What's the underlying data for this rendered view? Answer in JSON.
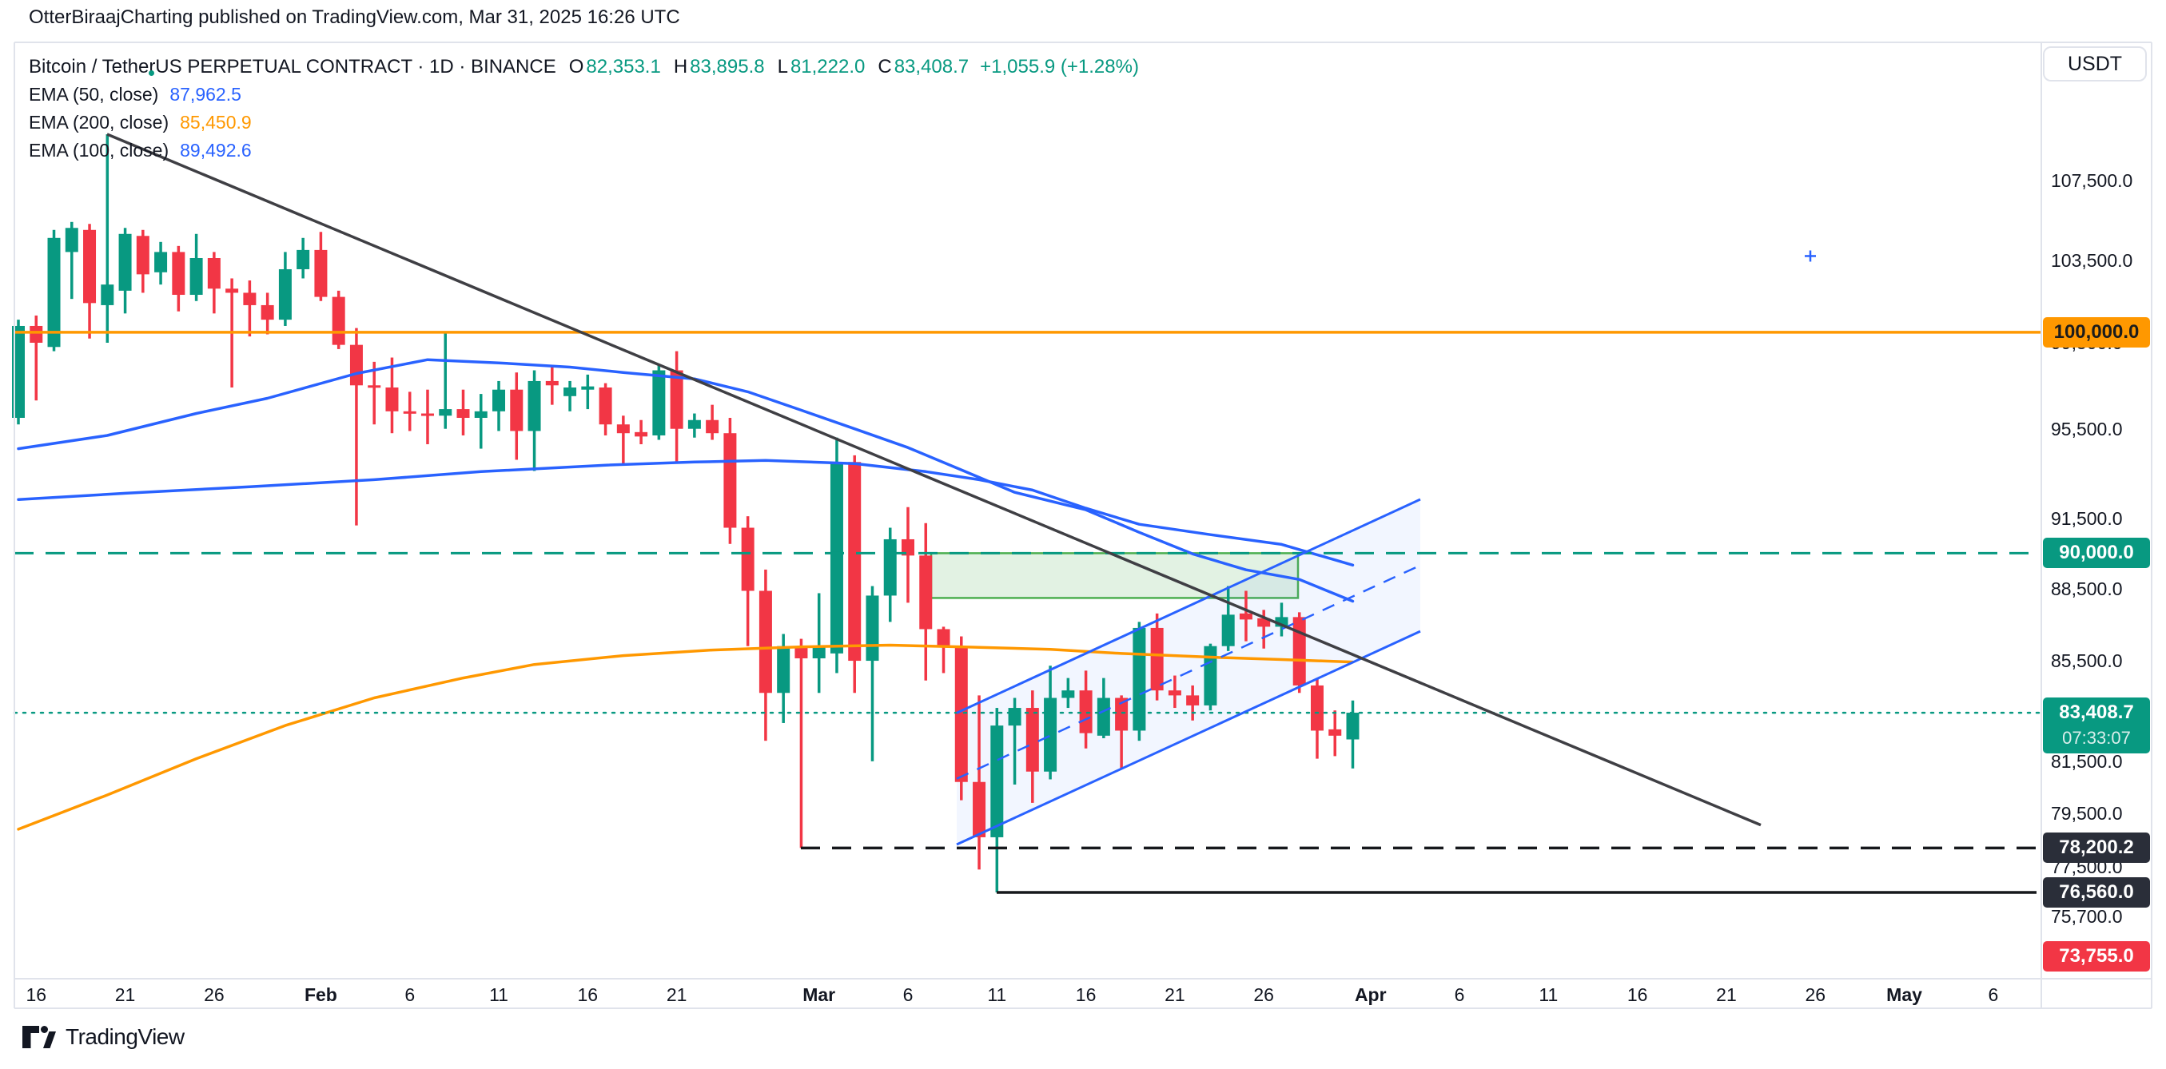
{
  "attribution": "OtterBiraajCharting published on TradingView.com, Mar 31, 2025 16:26 UTC",
  "header": {
    "title": "Bitcoin / TetherUS PERPETUAL CONTRACT · 1D · BINANCE",
    "ohlc": [
      {
        "k": "O",
        "v": "82,353.1"
      },
      {
        "k": "H",
        "v": "83,895.8"
      },
      {
        "k": "L",
        "v": "81,222.0"
      },
      {
        "k": "C",
        "v": "83,408.7"
      }
    ],
    "change": "+1,055.9 (+1.28%)",
    "up_color": "#089981"
  },
  "indicators": [
    {
      "label": "EMA (50, close)",
      "value": "87,962.5",
      "color": "#2962ff"
    },
    {
      "label": "EMA (200, close)",
      "value": "85,450.9",
      "color": "#ff9800"
    },
    {
      "label": "EMA (100, close)",
      "value": "89,492.6",
      "color": "#2962ff"
    }
  ],
  "axis": {
    "currency": "USDT",
    "price_ticks": [
      {
        "v": 107500,
        "t": "107,500.0"
      },
      {
        "v": 103500,
        "t": "103,500.0"
      },
      {
        "v": 99500,
        "t": "99,500.0"
      },
      {
        "v": 95500,
        "t": "95,500.0"
      },
      {
        "v": 91500,
        "t": "91,500.0"
      },
      {
        "v": 88500,
        "t": "88,500.0"
      },
      {
        "v": 85500,
        "t": "85,500.0"
      },
      {
        "v": 81500,
        "t": "81,500.0"
      },
      {
        "v": 79500,
        "t": "79,500.0"
      },
      {
        "v": 77500,
        "t": "77,500.0"
      },
      {
        "v": 75700,
        "t": "75,700.0"
      }
    ],
    "time_ticks": [
      {
        "i": 1,
        "t": "16"
      },
      {
        "i": 6,
        "t": "21"
      },
      {
        "i": 11,
        "t": "26"
      },
      {
        "i": 17,
        "t": "Feb",
        "bold": true
      },
      {
        "i": 22,
        "t": "6"
      },
      {
        "i": 27,
        "t": "11"
      },
      {
        "i": 32,
        "t": "16"
      },
      {
        "i": 37,
        "t": "21"
      },
      {
        "i": 45,
        "t": "Mar",
        "bold": true
      },
      {
        "i": 50,
        "t": "6"
      },
      {
        "i": 55,
        "t": "11"
      },
      {
        "i": 60,
        "t": "16"
      },
      {
        "i": 65,
        "t": "21"
      },
      {
        "i": 70,
        "t": "26"
      },
      {
        "i": 76,
        "t": "Apr",
        "bold": true
      },
      {
        "i": 81,
        "t": "6"
      },
      {
        "i": 86,
        "t": "11"
      },
      {
        "i": 91,
        "t": "16"
      },
      {
        "i": 96,
        "t": "21"
      },
      {
        "i": 101,
        "t": "26"
      },
      {
        "i": 106,
        "t": "May",
        "bold": true
      },
      {
        "i": 111,
        "t": "6"
      }
    ]
  },
  "footer": {
    "logo_text": "TradingView"
  },
  "chart_data": {
    "type": "candlestick",
    "symbol": "BTCUSDT PERPETUAL",
    "timeframe": "1D",
    "first_bar_date": "2025-01-15",
    "last_bar_date": "2025-03-31",
    "up_color": "#089981",
    "down_color": "#f23645",
    "candles": [
      [
        96000,
        100600,
        95700,
        100300
      ],
      [
        100300,
        100800,
        96800,
        99500
      ],
      [
        99300,
        105000,
        99100,
        104600
      ],
      [
        103900,
        105400,
        101600,
        105100
      ],
      [
        105000,
        105300,
        99700,
        101400
      ],
      [
        101300,
        109900,
        99500,
        102300
      ],
      [
        102000,
        105100,
        100900,
        104800
      ],
      [
        104700,
        105000,
        101900,
        102800
      ],
      [
        102900,
        104400,
        102300,
        103900
      ],
      [
        103900,
        104200,
        101000,
        101800
      ],
      [
        101800,
        104800,
        101500,
        103600
      ],
      [
        103600,
        103900,
        100900,
        102100
      ],
      [
        102100,
        102600,
        97400,
        101900
      ],
      [
        101900,
        102500,
        99800,
        101300
      ],
      [
        101300,
        101900,
        99900,
        100600
      ],
      [
        100600,
        103900,
        100300,
        103050
      ],
      [
        103050,
        104600,
        102600,
        104000
      ],
      [
        104000,
        104900,
        101500,
        101700
      ],
      [
        101700,
        102000,
        99200,
        99400
      ],
      [
        99400,
        100200,
        91200,
        97500
      ],
      [
        97500,
        98600,
        95700,
        97400
      ],
      [
        97400,
        98800,
        95300,
        96300
      ],
      [
        96300,
        97200,
        95400,
        96200
      ],
      [
        96200,
        97300,
        94800,
        96100
      ],
      [
        96100,
        100000,
        95500,
        96400
      ],
      [
        96400,
        97300,
        95200,
        96000
      ],
      [
        96000,
        97100,
        94600,
        96300
      ],
      [
        96300,
        97700,
        95400,
        97300
      ],
      [
        97300,
        98100,
        94100,
        95400
      ],
      [
        95400,
        98200,
        93600,
        97700
      ],
      [
        97700,
        98400,
        96600,
        97500
      ],
      [
        97000,
        97700,
        96300,
        97400
      ],
      [
        97300,
        98000,
        96400,
        97450
      ],
      [
        97400,
        97600,
        95200,
        95700
      ],
      [
        95700,
        96100,
        93900,
        95300
      ],
      [
        95350,
        95900,
        94800,
        95150
      ],
      [
        95200,
        98500,
        95000,
        98200
      ],
      [
        98200,
        99100,
        94000,
        95500
      ],
      [
        95500,
        96200,
        95100,
        95900
      ],
      [
        95900,
        96600,
        95000,
        95300
      ],
      [
        95300,
        96000,
        90400,
        91100
      ],
      [
        91100,
        91600,
        86100,
        88400
      ],
      [
        88400,
        89300,
        82300,
        84200
      ],
      [
        84200,
        86600,
        83000,
        86100
      ],
      [
        86100,
        86400,
        78200,
        85600
      ],
      [
        85600,
        88300,
        84200,
        86100
      ],
      [
        85800,
        95100,
        85000,
        94000
      ],
      [
        94000,
        94300,
        84200,
        85500
      ],
      [
        85500,
        88600,
        81500,
        88200
      ],
      [
        88200,
        91100,
        87100,
        90600
      ],
      [
        90600,
        92000,
        87900,
        89900
      ],
      [
        89900,
        91300,
        84700,
        86800
      ],
      [
        86800,
        86900,
        85000,
        86100
      ],
      [
        86100,
        86500,
        80000,
        80700
      ],
      [
        80700,
        84100,
        77400,
        78600
      ],
      [
        78600,
        83600,
        76560,
        82900
      ],
      [
        82900,
        84000,
        80600,
        83600
      ],
      [
        83600,
        84300,
        79900,
        81100
      ],
      [
        81100,
        85300,
        80800,
        84000
      ],
      [
        84000,
        84800,
        83600,
        84300
      ],
      [
        84300,
        85100,
        82000,
        82600
      ],
      [
        82500,
        84800,
        82400,
        84000
      ],
      [
        84000,
        84100,
        81200,
        82700
      ],
      [
        82700,
        87100,
        82300,
        86850
      ],
      [
        86850,
        87450,
        83900,
        84300
      ],
      [
        84300,
        84900,
        83600,
        84100
      ],
      [
        84100,
        84500,
        83100,
        83700
      ],
      [
        83700,
        86200,
        83500,
        86100
      ],
      [
        86100,
        88600,
        85900,
        87400
      ],
      [
        87450,
        88400,
        86300,
        87200
      ],
      [
        87250,
        87600,
        86000,
        86900
      ],
      [
        86900,
        87900,
        86500,
        87300
      ],
      [
        87300,
        87500,
        84200,
        84500
      ],
      [
        84500,
        84800,
        81600,
        82700
      ],
      [
        82750,
        83500,
        81700,
        82500
      ],
      [
        82353,
        83896,
        81222,
        83409
      ]
    ],
    "series": [
      {
        "name": "EMA 50",
        "color": "#2962ff",
        "points": [
          [
            0,
            94600
          ],
          [
            5,
            95200
          ],
          [
            10,
            96200
          ],
          [
            14,
            96900
          ],
          [
            19,
            98050
          ],
          [
            23,
            98700
          ],
          [
            27,
            98550
          ],
          [
            31,
            98350
          ],
          [
            34,
            98100
          ],
          [
            38,
            97800
          ],
          [
            41,
            97200
          ],
          [
            44,
            96350
          ],
          [
            47,
            95500
          ],
          [
            50,
            94650
          ],
          [
            53,
            93650
          ],
          [
            56,
            92650
          ],
          [
            60,
            91880
          ],
          [
            63,
            90900
          ],
          [
            66,
            89970
          ],
          [
            69,
            89290
          ],
          [
            72,
            88880
          ],
          [
            75,
            87962
          ]
        ]
      },
      {
        "name": "EMA 100",
        "color": "#2962ff",
        "points": [
          [
            0,
            92330
          ],
          [
            6,
            92610
          ],
          [
            13,
            92900
          ],
          [
            20,
            93210
          ],
          [
            26,
            93570
          ],
          [
            33,
            93860
          ],
          [
            38,
            94000
          ],
          [
            42,
            94070
          ],
          [
            47,
            93930
          ],
          [
            51,
            93570
          ],
          [
            54,
            93210
          ],
          [
            57,
            92750
          ],
          [
            60,
            91950
          ],
          [
            63,
            91250
          ],
          [
            67,
            90800
          ],
          [
            71,
            90380
          ],
          [
            75,
            89492
          ]
        ]
      },
      {
        "name": "EMA 200",
        "color": "#ff9800",
        "points": [
          [
            0,
            78900
          ],
          [
            5,
            80200
          ],
          [
            10,
            81600
          ],
          [
            15,
            82900
          ],
          [
            20,
            84000
          ],
          [
            25,
            84800
          ],
          [
            29,
            85350
          ],
          [
            34,
            85710
          ],
          [
            39,
            85940
          ],
          [
            44,
            86070
          ],
          [
            49,
            86140
          ],
          [
            53,
            86070
          ],
          [
            58,
            85970
          ],
          [
            62,
            85800
          ],
          [
            67,
            85650
          ],
          [
            71,
            85550
          ],
          [
            75,
            85450
          ]
        ]
      }
    ],
    "levels": [
      {
        "price": 100000,
        "label": "100,000.0",
        "style": "solid",
        "width": 3.5,
        "color": "#ff9800",
        "label_bg": "#ff9800",
        "label_color": "#1c1c1c",
        "x1": 18,
        "x2": 2554
      },
      {
        "price": 90000,
        "label": "90,000.0",
        "style": "dashed",
        "width": 3,
        "color": "#089981",
        "label_bg": "#089981",
        "label_color": "#ffffff",
        "x1": 18,
        "x2": 2554
      },
      {
        "price": 83408.7,
        "label": "83,408.7",
        "style": "dotted",
        "width": 2.5,
        "color": "#089981",
        "label_bg": "#089981",
        "label_color": "#ffffff",
        "x1": 18,
        "x2": 2554,
        "countdown": "07:33:07"
      },
      {
        "price": 78200.2,
        "label": "78,200.2",
        "style": "dashed",
        "width": 3.5,
        "color": "#16181c",
        "label_bg": "#2a2e39",
        "label_color": "#ffffff",
        "x1": 1002,
        "x2": 2554
      },
      {
        "price": 76560,
        "label": "76,560.0",
        "style": "solid",
        "width": 3.5,
        "color": "#16181c",
        "label_bg": "#2a2e39",
        "label_color": "#ffffff",
        "x1": 1247,
        "x2": 2548
      },
      {
        "price": 73755,
        "label": "73,755.0",
        "style": "none",
        "label_bg": "#f23645",
        "label_color": "#ffffff",
        "label_y": 1197
      }
    ],
    "trendline": {
      "x1": 134,
      "p1": 109900,
      "x2": 2203,
      "p2": 79060,
      "color": "#3f3f44",
      "width": 3.5
    },
    "channel": {
      "x1": 1197,
      "x2": 1777,
      "upper_p1": 83400,
      "upper_p2": 92340,
      "lower_p1": 78330,
      "lower_p2": 86710,
      "color": "#2962ff",
      "width": 3,
      "fill": "rgba(41,98,255,0.06)",
      "mid_dashed": true
    },
    "supply_zone": {
      "x1": 1165,
      "x2": 1624,
      "top_price": 90000,
      "bottom_price": 88100,
      "fill": "rgba(76,175,80,0.16)",
      "border": "#4caf50"
    },
    "marker_cross": {
      "x": 2265,
      "price": 103700,
      "color": "#2962ff"
    },
    "ylabel": "USDT",
    "grid": false,
    "legend_position": "top-left"
  }
}
